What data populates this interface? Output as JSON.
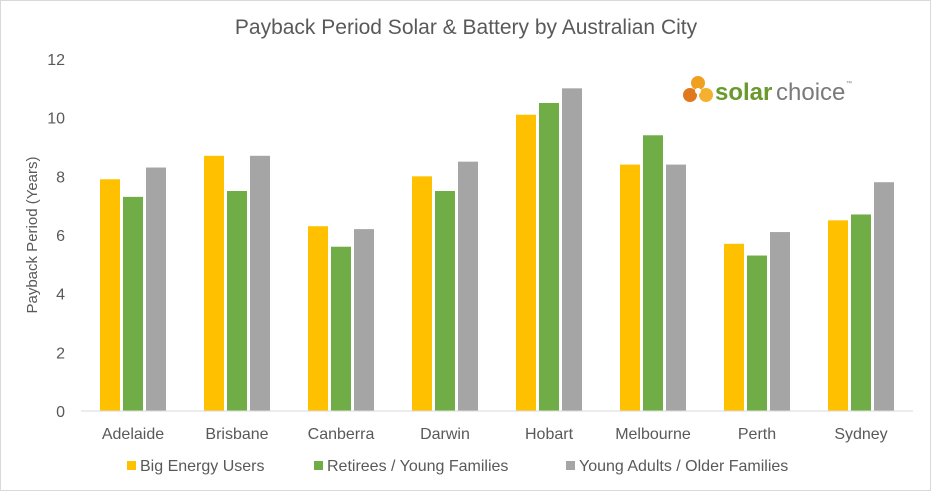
{
  "chart_data": {
    "type": "bar",
    "title": "Payback Period Solar & Battery by Australian City",
    "xlabel": "",
    "ylabel": "Payback Period (Years)",
    "ylim": [
      0,
      12
    ],
    "yticks": [
      0,
      2,
      4,
      6,
      8,
      10,
      12
    ],
    "grid": false,
    "legend_position": "bottom",
    "categories": [
      "Adelaide",
      "Brisbane",
      "Canberra",
      "Darwin",
      "Hobart",
      "Melbourne",
      "Perth",
      "Sydney"
    ],
    "series": [
      {
        "name": "Big Energy Users",
        "color": "#ffc000",
        "values": [
          7.9,
          8.7,
          6.3,
          8.0,
          10.1,
          8.4,
          5.7,
          6.5
        ]
      },
      {
        "name": "Retirees / Young Families",
        "color": "#70ad47",
        "values": [
          7.3,
          7.5,
          5.6,
          7.5,
          10.5,
          9.4,
          5.3,
          6.7
        ]
      },
      {
        "name": "Young Adults / Older Families",
        "color": "#a5a5a5",
        "values": [
          8.3,
          8.7,
          6.2,
          8.5,
          11.0,
          8.4,
          6.1,
          7.8
        ]
      }
    ]
  },
  "logo": {
    "word1": "solar",
    "word2": "choice",
    "tm": "™",
    "icon": "solar-choice-flower-icon"
  }
}
